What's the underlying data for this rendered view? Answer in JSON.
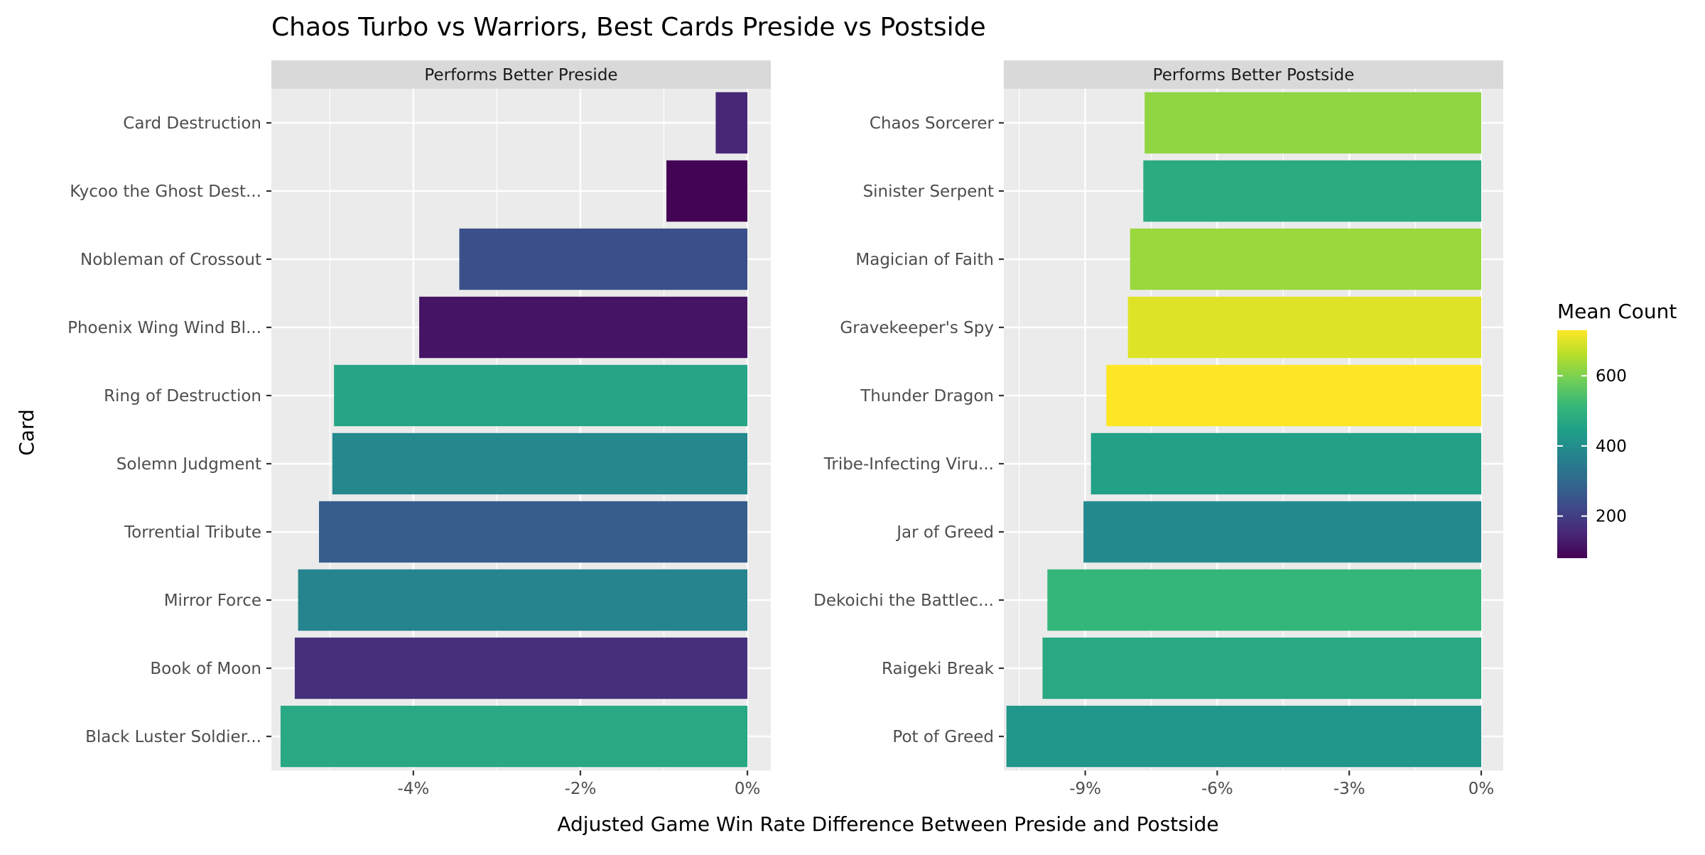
{
  "chart_data": {
    "type": "bar",
    "orientation": "horizontal",
    "title": "Chaos Turbo vs Warriors, Best Cards Preside vs Postside",
    "xlabel": "Adjusted Game Win Rate Difference Between Preside and Postside",
    "ylabel": "Card",
    "grid": true,
    "legend": {
      "title": "Mean Count",
      "placement": "right",
      "type": "colorbar",
      "range": [
        80,
        730
      ],
      "ticks": [
        200,
        400,
        600
      ],
      "tick_labels": [
        "200",
        "400",
        "600"
      ],
      "colors": [
        "#440154",
        "#482878",
        "#3e4989",
        "#31688e",
        "#26828e",
        "#1f9e89",
        "#35b779",
        "#6ece58",
        "#b5de2b",
        "#fde725"
      ]
    },
    "panels": [
      {
        "strip": "Performs Better Preside",
        "xlim": [
          -5.7,
          0.28
        ],
        "xticks": [
          -4,
          -2,
          0
        ],
        "xtick_labels": [
          "-4%",
          "-2%",
          "0%"
        ],
        "minor_xticks": [
          -5,
          -3,
          -1
        ],
        "categories": [
          "Card Destruction",
          "Kycoo the Ghost Dest...",
          "Nobleman of Crossout",
          "Phoenix Wing Wind Bl...",
          "Ring of Destruction",
          "Solemn Judgment",
          "Torrential Tribute",
          "Mirror Force",
          "Book of Moon",
          "Black Luster Soldier..."
        ],
        "values": [
          -0.38,
          -0.97,
          -3.45,
          -3.93,
          -4.95,
          -4.97,
          -5.13,
          -5.38,
          -5.42,
          -5.59
        ],
        "mean_count": [
          150,
          85,
          240,
          115,
          460,
          385,
          270,
          375,
          170,
          470
        ]
      },
      {
        "strip": "Performs Better Postside",
        "xlim": [
          -10.85,
          0.5
        ],
        "xticks": [
          -9,
          -6,
          -3,
          0
        ],
        "xtick_labels": [
          "-9%",
          "-6%",
          "-3%",
          "0%"
        ],
        "minor_xticks": [
          -10.5,
          -7.5,
          -4.5,
          -1.5
        ],
        "categories": [
          "Chaos Sorcerer",
          "Sinister Serpent",
          "Magician of Faith",
          "Gravekeeper's Spy",
          "Thunder Dragon",
          "Tribe-Infecting Viru...",
          "Jar of Greed",
          "Dekoichi the Battlec...",
          "Raigeki Break",
          "Pot of Greed"
        ],
        "values": [
          -7.65,
          -7.68,
          -7.98,
          -8.03,
          -8.52,
          -8.87,
          -9.04,
          -9.86,
          -9.97,
          -10.79
        ],
        "mean_count": [
          620,
          480,
          630,
          700,
          730,
          450,
          390,
          510,
          470,
          420
        ]
      }
    ]
  }
}
